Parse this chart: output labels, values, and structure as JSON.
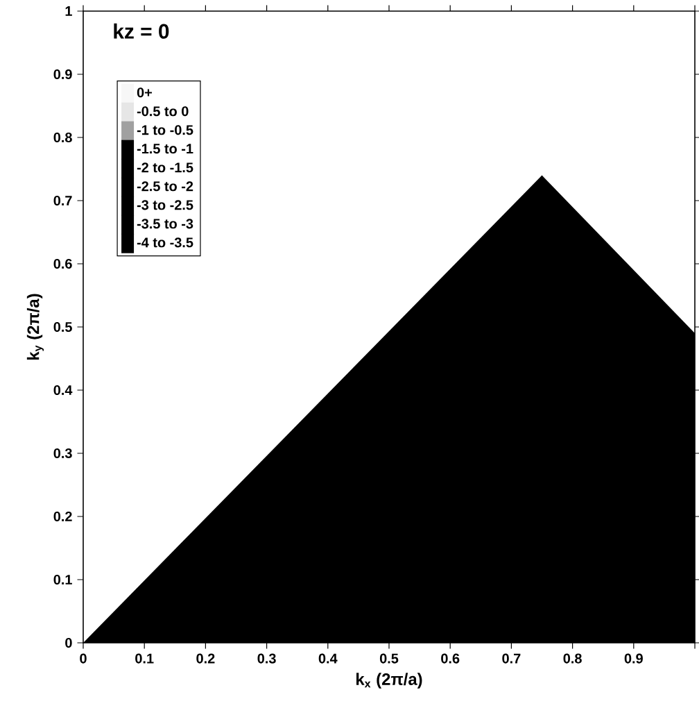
{
  "chart_data": {
    "type": "area",
    "title": "kz = 0",
    "xlabel": "k$_{x}$  (2π/a)",
    "ylabel": "k$_{y}$  (2π/a)",
    "x": [
      0,
      0.75,
      1.0
    ],
    "series": [
      {
        "name": "0+",
        "color": "#f7f7f7",
        "values": [
          null,
          null,
          null
        ]
      },
      {
        "name": "-0.5 to 0",
        "color": "#e6e6e6",
        "values": [
          null,
          null,
          null
        ]
      },
      {
        "name": "-1 to -0.5",
        "color": "#a0a0a0",
        "values": [
          null,
          null,
          null
        ]
      },
      {
        "name": "-1.5 to -1",
        "color": "#000000",
        "values": [
          null,
          null,
          null
        ]
      },
      {
        "name": "-2 to -1.5",
        "color": "#000000",
        "values": [
          null,
          null,
          null
        ]
      },
      {
        "name": "-2.5 to -2",
        "color": "#000000",
        "values": [
          null,
          null,
          null
        ]
      },
      {
        "name": "-3 to -2.5",
        "color": "#000000",
        "values": [
          null,
          null,
          null
        ]
      },
      {
        "name": "-3.5 to -3",
        "color": "#000000",
        "values": [
          null,
          null,
          null
        ]
      },
      {
        "name": "-4 to -3.5",
        "color": "#000000",
        "values": [
          0,
          0.74,
          0.49
        ]
      }
    ],
    "xlim": [
      0,
      1
    ],
    "ylim": [
      0,
      1
    ],
    "xticks": [
      0,
      0.1,
      0.2,
      0.3,
      0.4,
      0.5,
      0.6,
      0.7,
      0.8,
      0.9,
      {
        "value": 1,
        "label": null
      }
    ],
    "yticks": [
      0,
      0.1,
      0.2,
      0.3,
      0.4,
      0.5,
      0.6,
      0.7,
      0.8,
      0.9,
      1
    ],
    "legend": "top left",
    "grid": false
  }
}
